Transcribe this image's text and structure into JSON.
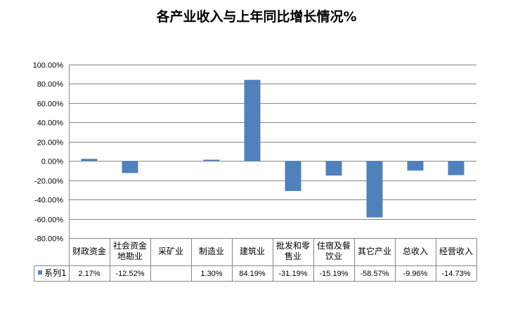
{
  "chart_data": {
    "type": "bar",
    "title": "各产业收入与上年同比增长情况%",
    "categories": [
      [
        "财政资金"
      ],
      [
        "社会资金",
        "地勘业"
      ],
      [
        "采矿业"
      ],
      [
        "制造业"
      ],
      [
        "建筑业"
      ],
      [
        "批发和零",
        "售业"
      ],
      [
        "住宿及餐",
        "饮业"
      ],
      [
        "其它产业"
      ],
      [
        "总收入"
      ],
      [
        "经营收入"
      ]
    ],
    "series": [
      {
        "name": "系列1",
        "values": [
          2.17,
          -12.52,
          null,
          1.3,
          84.19,
          -31.19,
          -15.19,
          -58.57,
          -9.96,
          -14.73
        ],
        "labels": [
          "2.17%",
          "-12.52%",
          "",
          "1.30%",
          "84.19%",
          "-31.19%",
          "-15.19%",
          "-58.57%",
          "-9.96%",
          "-14.73%"
        ]
      }
    ],
    "y_ticks": [
      "100.00%",
      "80.00%",
      "60.00%",
      "40.00%",
      "20.00%",
      "0.00%",
      "-20.00%",
      "-40.00%",
      "-60.00%",
      "-80.00%"
    ],
    "ylim": [
      -80,
      100
    ],
    "grid": true,
    "legend": "data-table",
    "colors": {
      "bar": "#4f81bd",
      "grid": "#868686",
      "axis": "#868686"
    }
  }
}
